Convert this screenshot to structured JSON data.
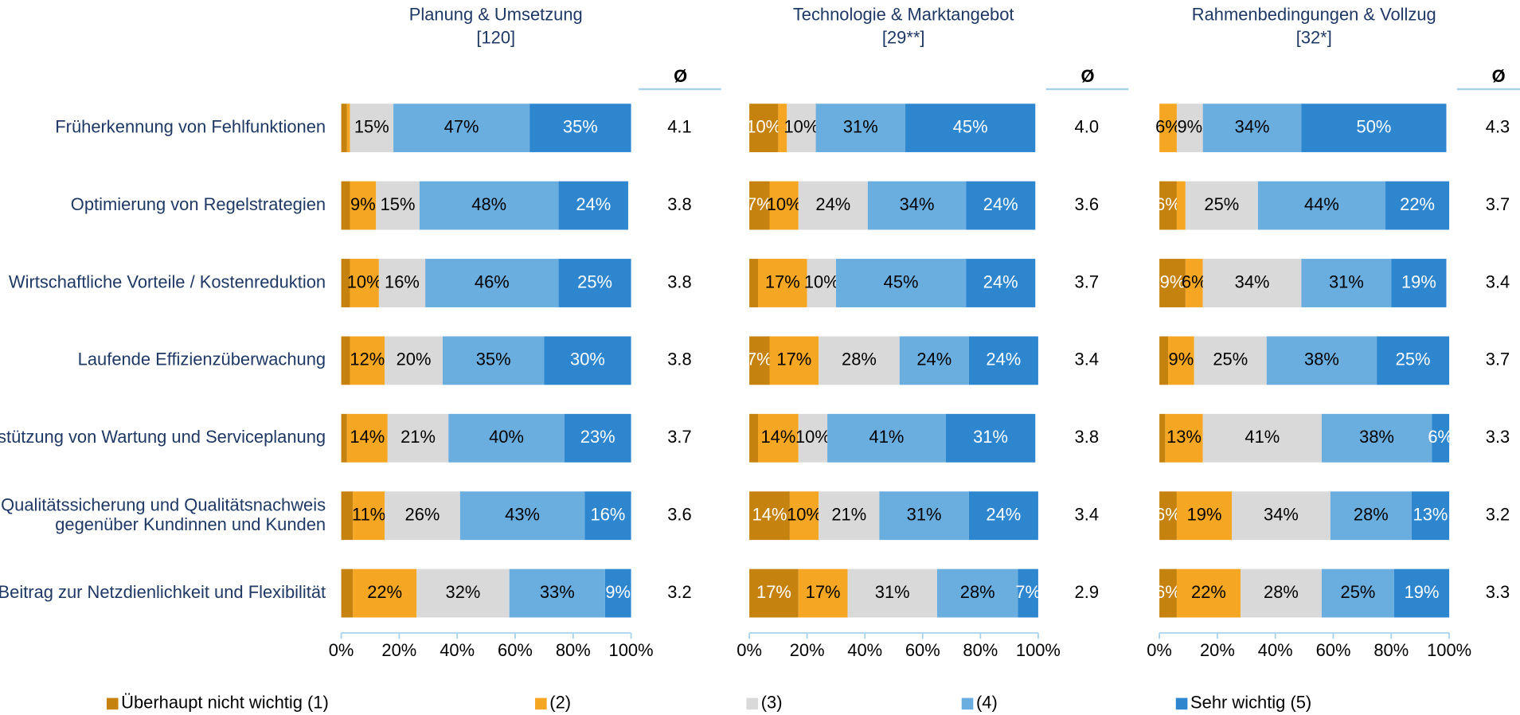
{
  "chart_data": [
    {
      "type": "bar",
      "orientation": "horizontal",
      "stacked": true,
      "title": "Planung & Umsetzung",
      "subtitle": "[120]",
      "categories": [
        "Früherkennung von Fehlfunktionen",
        "Optimierung von Regelstrategien",
        "Wirtschaftliche Vorteile / Kostenreduktion",
        "Laufende Effizienzüberwachung",
        "Unterstützung von Wartung und Serviceplanung",
        "Qualitätssicherung und Qualitätsnachweis\ngegenüber Kundinnen und Kunden",
        "Beitrag zur Netzdienlichkeit und Flexibilität"
      ],
      "series": [
        {
          "name": "Überhaupt nicht wichtig (1)",
          "color": "#c5820f",
          "values": [
            2,
            3,
            3,
            3,
            2,
            4,
            4
          ],
          "value_labels": [
            null,
            null,
            null,
            null,
            null,
            null,
            null
          ]
        },
        {
          "name": "(2)",
          "color": "#f5a623",
          "values": [
            1,
            9,
            10,
            12,
            14,
            11,
            22
          ],
          "value_labels": [
            null,
            "9%",
            "10%",
            "12%",
            "14%",
            "11%",
            "22%"
          ]
        },
        {
          "name": "(3)",
          "color": "#d9d9d9",
          "values": [
            15,
            15,
            16,
            20,
            21,
            26,
            32
          ],
          "value_labels": [
            "15%",
            "15%",
            "16%",
            "20%",
            "21%",
            "26%",
            "32%"
          ]
        },
        {
          "name": "(4)",
          "color": "#6aaee0",
          "values": [
            47,
            48,
            46,
            35,
            40,
            43,
            33
          ],
          "value_labels": [
            "47%",
            "48%",
            "46%",
            "35%",
            "40%",
            "43%",
            "33%"
          ]
        },
        {
          "name": "Sehr wichtig (5)",
          "color": "#2e86cf",
          "values": [
            35,
            24,
            25,
            30,
            23,
            16,
            9
          ],
          "value_labels": [
            "35%",
            "24%",
            "25%",
            "30%",
            "23%",
            "16%",
            "9%"
          ]
        }
      ],
      "mean_header": "Ø",
      "means": [
        4.1,
        3.8,
        3.8,
        3.8,
        3.7,
        3.6,
        3.2
      ],
      "xlim": [
        0,
        100
      ],
      "xticks": [
        {
          "value": 0,
          "label": "0%"
        },
        {
          "value": 20,
          "label": "20%"
        },
        {
          "value": 40,
          "label": "40%"
        },
        {
          "value": 60,
          "label": "60%"
        },
        {
          "value": 80,
          "label": "80%"
        },
        {
          "value": 100,
          "label": "100%"
        }
      ]
    },
    {
      "type": "bar",
      "orientation": "horizontal",
      "stacked": true,
      "title": "Technologie & Marktangebot",
      "subtitle": "[29**]",
      "series": [
        {
          "values": [
            10,
            7,
            3,
            7,
            3,
            14,
            17
          ],
          "value_labels": [
            "10%",
            "7%",
            null,
            "7%",
            null,
            "14%",
            "17%"
          ]
        },
        {
          "values": [
            3,
            10,
            17,
            17,
            14,
            10,
            17
          ],
          "value_labels": [
            null,
            "10%",
            "17%",
            "17%",
            "14%",
            "10%",
            "17%"
          ]
        },
        {
          "values": [
            10,
            24,
            10,
            28,
            10,
            21,
            31
          ],
          "value_labels": [
            "10%",
            "24%",
            "10%",
            "28%",
            "10%",
            "21%",
            "31%"
          ]
        },
        {
          "values": [
            31,
            34,
            45,
            24,
            41,
            31,
            28
          ],
          "value_labels": [
            "31%",
            "34%",
            "45%",
            "24%",
            "41%",
            "31%",
            "28%"
          ]
        },
        {
          "values": [
            45,
            24,
            24,
            24,
            31,
            24,
            7
          ],
          "value_labels": [
            "45%",
            "24%",
            "24%",
            "24%",
            "31%",
            "24%",
            "7%"
          ]
        }
      ],
      "mean_header": "Ø",
      "means": [
        4.0,
        3.6,
        3.7,
        3.4,
        3.8,
        3.4,
        2.9
      ],
      "mean_labels": [
        "4.0",
        null,
        null,
        null,
        null,
        null,
        null
      ],
      "xlim": [
        0,
        100
      ],
      "xticks": [
        {
          "value": 0,
          "label": "0%"
        },
        {
          "value": 20,
          "label": "20%"
        },
        {
          "value": 40,
          "label": "40%"
        },
        {
          "value": 60,
          "label": "60%"
        },
        {
          "value": 80,
          "label": "80%"
        },
        {
          "value": 100,
          "label": "100%"
        }
      ]
    },
    {
      "type": "bar",
      "orientation": "horizontal",
      "stacked": true,
      "title": "Rahmenbedingungen & Vollzug",
      "subtitle": "[32*]",
      "series": [
        {
          "values": [
            0,
            6,
            9,
            3,
            2,
            6,
            6
          ],
          "value_labels": [
            null,
            "6%",
            "9%",
            null,
            null,
            "6%",
            "6%"
          ]
        },
        {
          "values": [
            6,
            3,
            6,
            9,
            13,
            19,
            22
          ],
          "value_labels": [
            "6%",
            null,
            "6%",
            "9%",
            "13%",
            "19%",
            "22%"
          ]
        },
        {
          "values": [
            9,
            25,
            34,
            25,
            41,
            34,
            28
          ],
          "value_labels": [
            "9%",
            "25%",
            "34%",
            "25%",
            "41%",
            "34%",
            "28%"
          ]
        },
        {
          "values": [
            34,
            44,
            31,
            38,
            38,
            28,
            25
          ],
          "value_labels": [
            "34%",
            "44%",
            "31%",
            "38%",
            "38%",
            "28%",
            "25%"
          ]
        },
        {
          "values": [
            50,
            22,
            19,
            25,
            6,
            13,
            19
          ],
          "value_labels": [
            "50%",
            "22%",
            "19%",
            "25%",
            "6%",
            "13%",
            "19%"
          ]
        }
      ],
      "mean_header": "Ø",
      "means": [
        4.3,
        3.7,
        3.4,
        3.7,
        3.3,
        3.2,
        3.3
      ],
      "xlim": [
        0,
        100
      ],
      "xticks": [
        {
          "value": 0,
          "label": "0%"
        },
        {
          "value": 20,
          "label": "20%"
        },
        {
          "value": 40,
          "label": "40%"
        },
        {
          "value": 60,
          "label": "60%"
        },
        {
          "value": 80,
          "label": "80%"
        },
        {
          "value": 100,
          "label": "100%"
        }
      ]
    }
  ]
}
